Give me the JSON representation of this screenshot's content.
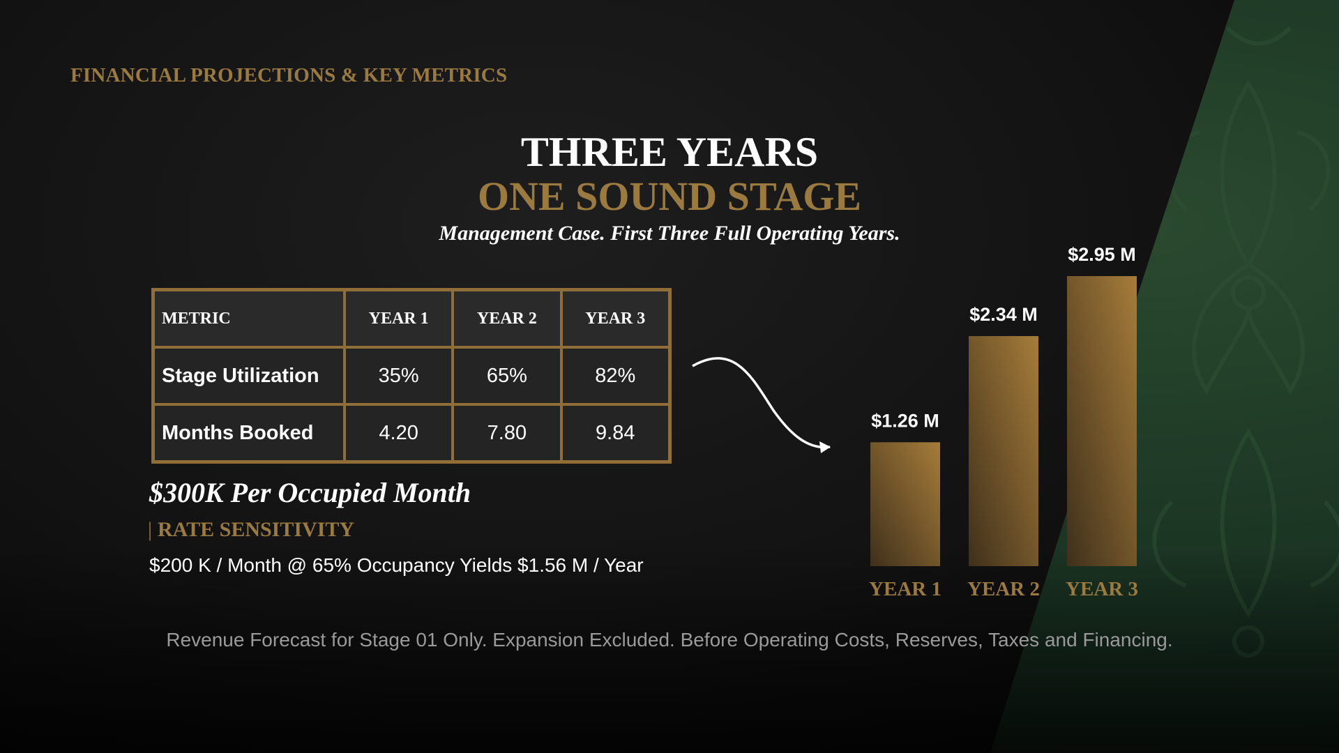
{
  "header": {
    "kicker": "FINANCIAL PROJECTIONS & KEY METRICS",
    "title_line1": "THREE YEARS",
    "title_line2": "ONE SOUND STAGE",
    "subtitle": "Management Case. First Three Full Operating Years."
  },
  "table": {
    "headers": [
      "METRIC",
      "YEAR 1",
      "YEAR 2",
      "YEAR 3"
    ],
    "rows": [
      {
        "label": "Stage Utilization",
        "values": [
          "35%",
          "65%",
          "82%"
        ]
      },
      {
        "label": "Months Booked",
        "values": [
          "4.20",
          "7.80",
          "9.84"
        ]
      }
    ]
  },
  "rate": {
    "headline": "$300K Per Occupied Month",
    "sensitivity_bar": "|",
    "sensitivity_label": "RATE SENSITIVITY",
    "sensitivity_detail": "$200 K / Month @ 65% Occupancy Yields $1.56 M / Year"
  },
  "footnote": "Revenue Forecast for Stage 01 Only. Expansion Excluded. Before Operating Costs, Reserves, Taxes and Financing.",
  "colors": {
    "gold": "#9b7a3f",
    "bar_dark": "#4a3820",
    "bar_light": "#a67c3a",
    "green": "#1c3524"
  },
  "chart_data": {
    "type": "bar",
    "categories": [
      "YEAR 1",
      "YEAR 2",
      "YEAR 3"
    ],
    "values": [
      1.26,
      2.34,
      2.95
    ],
    "data_labels": [
      "$1.26 M",
      "$2.34 M",
      "$2.95 M"
    ],
    "title": "",
    "xlabel": "",
    "ylabel": "",
    "ylim": [
      0,
      2.95
    ],
    "grid": false,
    "legend": "none"
  }
}
